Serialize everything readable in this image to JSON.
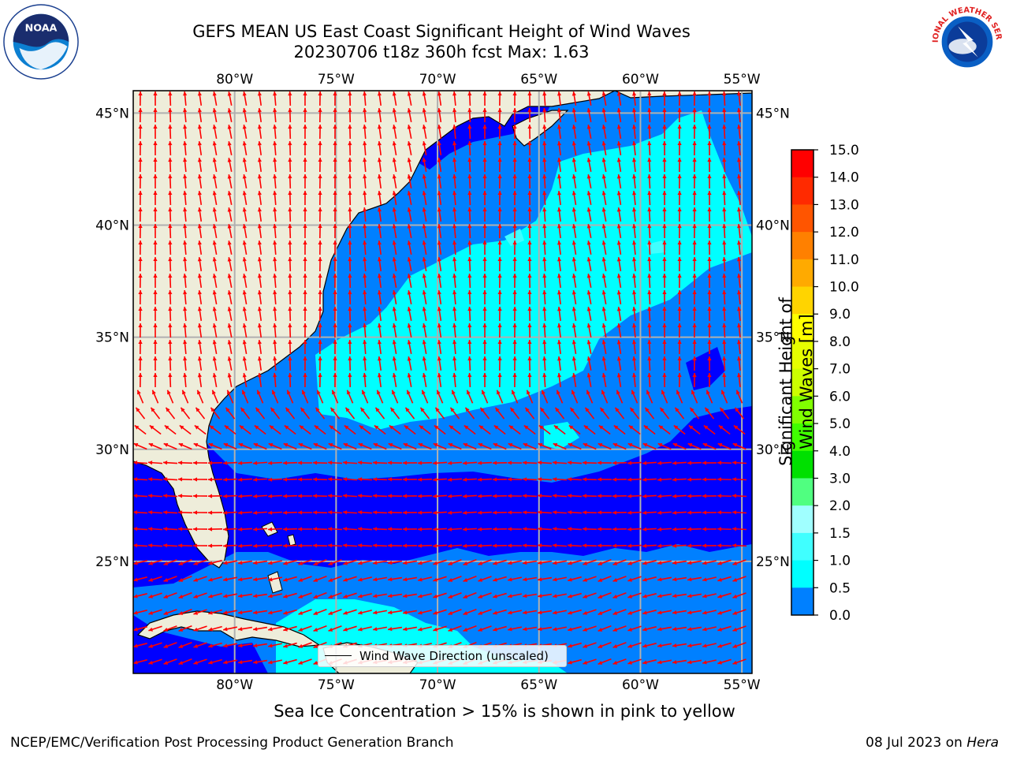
{
  "header": {
    "title_line1": "GEFS MEAN US East Coast Significant Height of Wind Waves",
    "title_line2": "20230706 t18z 360h fcst   Max: 1.63"
  },
  "logos": {
    "left": {
      "icon": "noaa-logo",
      "text": "NOAA"
    },
    "right": {
      "icon": "national-weather-service-logo",
      "text": "NATIONAL WEATHER SERVICE"
    }
  },
  "map": {
    "lon_labels": [
      "80°W",
      "75°W",
      "70°W",
      "65°W",
      "60°W",
      "55°W"
    ],
    "lat_labels": [
      "45°N",
      "40°N",
      "35°N",
      "30°N",
      "25°N"
    ],
    "lon_range": [
      -85,
      -54.5
    ],
    "lat_range": [
      20,
      46
    ],
    "grid": true,
    "colors": {
      "land": "#eeedda",
      "band_0_0.5": "#0000ff",
      "band_0.5_1.0": "#0080ff",
      "band_1.0_1.5": "#00ffff",
      "band_1.5_2.0": "#40ffff",
      "arrows": "#ff0000",
      "grid": "#b0b0b0"
    }
  },
  "legend": {
    "label": "Wind Wave Direction (unscaled)"
  },
  "colorbar": {
    "title": "Significant Height of Wind Waves [m]",
    "ticks": [
      "15.0",
      "14.0",
      "13.0",
      "12.0",
      "11.0",
      "10.0",
      "9.0",
      "8.0",
      "7.0",
      "6.0",
      "5.0",
      "4.0",
      "3.0",
      "2.0",
      "1.5",
      "1.0",
      "0.5",
      "0.0"
    ],
    "colors": [
      "#ff0000",
      "#ff2a00",
      "#ff5500",
      "#ff8000",
      "#ffaa00",
      "#ffd400",
      "#ffff00",
      "#e6ff00",
      "#ccff00",
      "#80ff00",
      "#40ff00",
      "#00e000",
      "#50ff80",
      "#a0ffff",
      "#40ffff",
      "#00ffff",
      "#0080ff",
      "#0000ff"
    ]
  },
  "notes": {
    "ice": "Sea Ice Concentration > 15% is shown in pink to yellow",
    "footer_left": "NCEP/EMC/Verification Post Processing Product Generation Branch",
    "footer_date": "08 Jul 2023 on ",
    "footer_machine": "Hera"
  }
}
